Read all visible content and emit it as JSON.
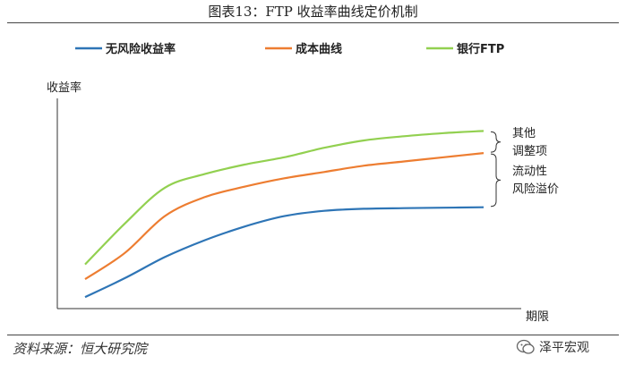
{
  "header": {
    "title": "图表13：FTP 收益率曲线定价机制"
  },
  "footer": {
    "source": "资料来源：恒大研究院",
    "watermark": "泽平宏观"
  },
  "chart_data": {
    "type": "line",
    "title": "图表13：FTP 收益率曲线定价机制",
    "ylabel": "收益率",
    "xlabel": "期限",
    "legend_position": "top",
    "grid": false,
    "x": [
      0,
      0.1,
      0.2,
      0.3,
      0.4,
      0.5,
      0.6,
      0.7,
      0.8,
      0.9,
      1.0
    ],
    "ylim": [
      0,
      1
    ],
    "series": [
      {
        "name": "无风险收益率",
        "color": "#2e75b6",
        "values": [
          0.055,
          0.145,
          0.245,
          0.325,
          0.39,
          0.44,
          0.465,
          0.475,
          0.478,
          0.48,
          0.482
        ]
      },
      {
        "name": "成本曲线",
        "color": "#ed7d31",
        "values": [
          0.14,
          0.265,
          0.44,
          0.53,
          0.58,
          0.62,
          0.65,
          0.68,
          0.7,
          0.72,
          0.74
        ]
      },
      {
        "name": "银行FTP",
        "color": "#92d050",
        "values": [
          0.21,
          0.405,
          0.575,
          0.64,
          0.685,
          0.72,
          0.765,
          0.8,
          0.82,
          0.835,
          0.845
        ]
      }
    ],
    "annotations": [
      {
        "label_lines": [
          "其他",
          "调整项"
        ],
        "between": [
          "成本曲线",
          "银行FTP"
        ]
      },
      {
        "label_lines": [
          "流动性",
          "风险溢价"
        ],
        "between": [
          "无风险收益率",
          "成本曲线"
        ]
      }
    ]
  }
}
